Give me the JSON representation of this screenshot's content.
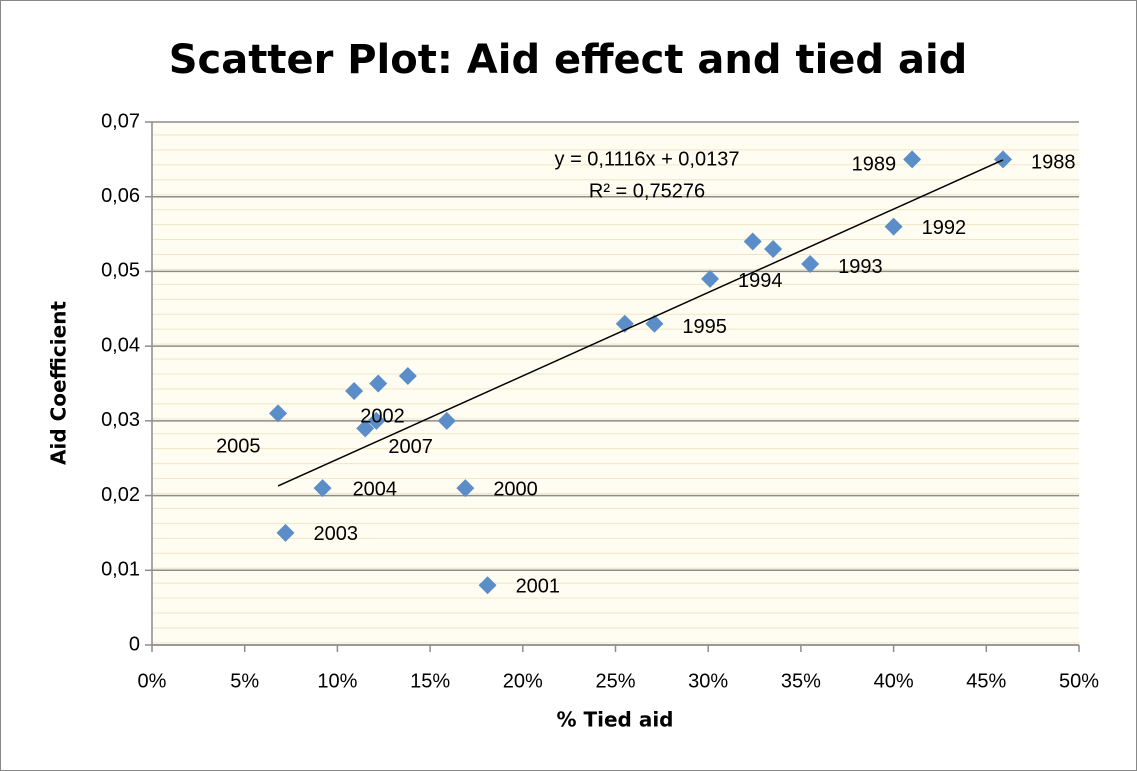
{
  "chart_data": {
    "type": "scatter",
    "title": "Scatter Plot: Aid effect and tied aid",
    "x_label": "% Tied aid",
    "y_label": "Aid Coefficient",
    "series": [
      {
        "name": "Aid coefficient",
        "color": "#5b8ec8",
        "x": [
          0.068,
          0.072,
          0.092,
          0.109,
          0.115,
          0.121,
          0.122,
          0.138,
          0.159,
          0.169,
          0.181,
          0.255,
          0.271,
          0.301,
          0.324,
          0.335,
          0.355,
          0.4,
          0.41,
          0.459
        ],
        "values": [
          0.031,
          0.015,
          0.021,
          0.034,
          0.029,
          0.03,
          0.035,
          0.036,
          0.03,
          0.021,
          0.008,
          0.043,
          0.043,
          0.049,
          0.054,
          0.053,
          0.051,
          0.056,
          0.065,
          0.065
        ],
        "point_labels": [
          "2005",
          "2003",
          "2004",
          null,
          "2002",
          "2007",
          null,
          null,
          null,
          "2000",
          "2001",
          null,
          "1995",
          "1994",
          null,
          null,
          "1993",
          "1992",
          "1989",
          "1988"
        ]
      }
    ],
    "trendline": {
      "slope": 0.1116,
      "intercept": 0.0137,
      "equation": "y = 0,1116x + 0,0137",
      "r_squared": "R² = 0,75276"
    },
    "xlim": [
      0,
      0.5
    ],
    "xticks": [
      {
        "value": 0,
        "label": "0%"
      },
      {
        "value": 0.05,
        "label": "5%"
      },
      {
        "value": 0.1,
        "label": "10%"
      },
      {
        "value": 0.15,
        "label": "15%"
      },
      {
        "value": 0.2,
        "label": "20%"
      },
      {
        "value": 0.25,
        "label": "25%"
      },
      {
        "value": 0.3,
        "label": "30%"
      },
      {
        "value": 0.35,
        "label": "35%"
      },
      {
        "value": 0.4,
        "label": "40%"
      },
      {
        "value": 0.45,
        "label": "45%"
      },
      {
        "value": 0.5,
        "label": "50%"
      }
    ],
    "ylim": [
      0,
      0.07
    ],
    "yticks": [
      0,
      {
        "value": 0.01,
        "label": "0,01"
      },
      {
        "value": 0.02,
        "label": "0,02"
      },
      {
        "value": 0.03,
        "label": "0,03"
      },
      {
        "value": 0.04,
        "label": "0,04"
      },
      {
        "value": 0.05,
        "label": "0,05"
      },
      {
        "value": 0.06,
        "label": "0,06"
      },
      {
        "value": 0.07,
        "label": "0,07"
      }
    ],
    "grid": true
  }
}
